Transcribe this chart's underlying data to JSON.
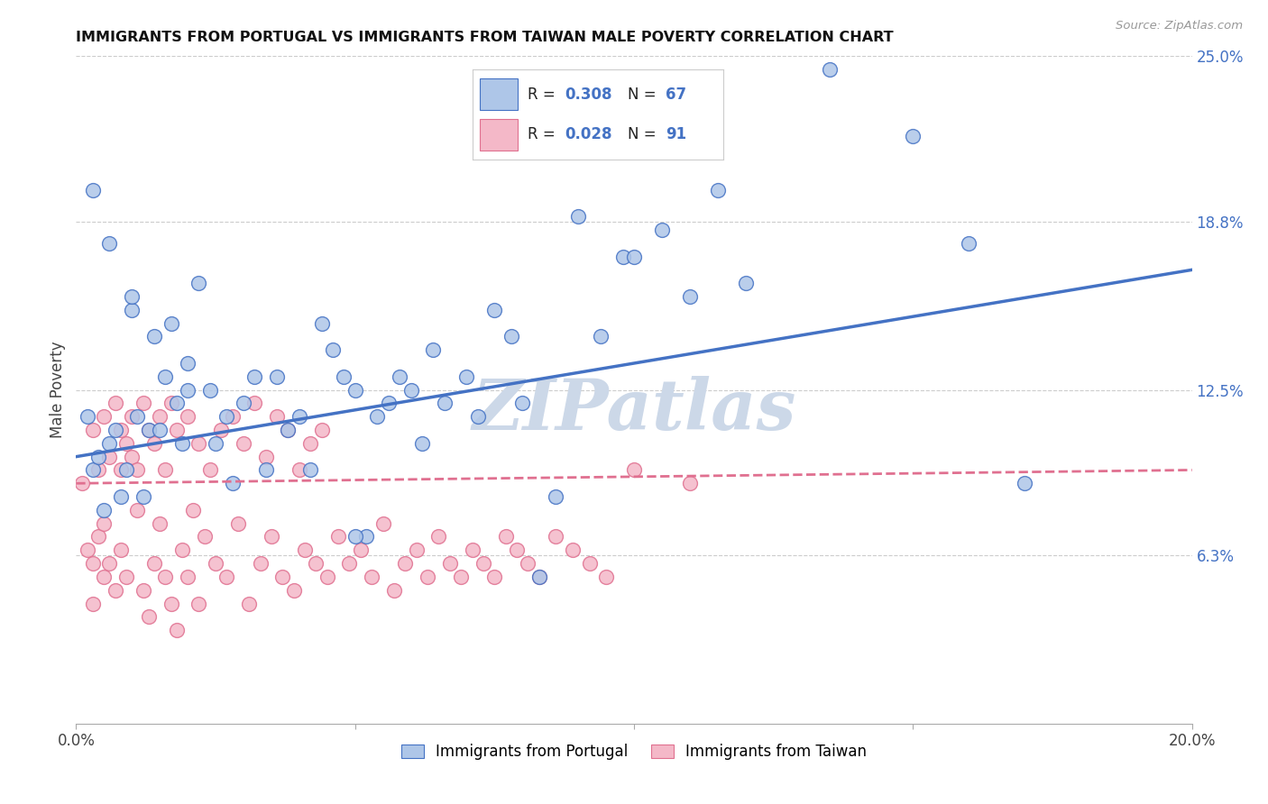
{
  "title": "IMMIGRANTS FROM PORTUGAL VS IMMIGRANTS FROM TAIWAN MALE POVERTY CORRELATION CHART",
  "source": "Source: ZipAtlas.com",
  "ylabel": "Male Poverty",
  "xlim": [
    0.0,
    0.2
  ],
  "ylim": [
    0.0,
    0.25
  ],
  "ytick_right_labels": [
    "25.0%",
    "18.8%",
    "12.5%",
    "6.3%"
  ],
  "ytick_right_values": [
    0.25,
    0.188,
    0.125,
    0.063
  ],
  "legend_R_portugal": "0.308",
  "legend_N_portugal": "67",
  "legend_R_taiwan": "0.028",
  "legend_N_taiwan": "91",
  "color_portugal": "#aec6e8",
  "color_taiwan": "#f4b8c8",
  "color_portugal_line": "#4472c4",
  "color_taiwan_line": "#e07090",
  "watermark": "ZIPatlas",
  "watermark_color": "#ccd8e8",
  "portugal_x": [
    0.002,
    0.003,
    0.004,
    0.005,
    0.006,
    0.007,
    0.008,
    0.009,
    0.01,
    0.011,
    0.012,
    0.013,
    0.014,
    0.015,
    0.016,
    0.017,
    0.018,
    0.019,
    0.02,
    0.022,
    0.024,
    0.025,
    0.027,
    0.028,
    0.03,
    0.032,
    0.034,
    0.036,
    0.038,
    0.04,
    0.042,
    0.044,
    0.046,
    0.048,
    0.05,
    0.052,
    0.054,
    0.056,
    0.058,
    0.06,
    0.062,
    0.064,
    0.066,
    0.07,
    0.072,
    0.075,
    0.078,
    0.08,
    0.083,
    0.086,
    0.09,
    0.094,
    0.098,
    0.1,
    0.105,
    0.11,
    0.115,
    0.12,
    0.135,
    0.15,
    0.16,
    0.17,
    0.003,
    0.006,
    0.01,
    0.02,
    0.05
  ],
  "portugal_y": [
    0.115,
    0.095,
    0.1,
    0.08,
    0.105,
    0.11,
    0.085,
    0.095,
    0.155,
    0.115,
    0.085,
    0.11,
    0.145,
    0.11,
    0.13,
    0.15,
    0.12,
    0.105,
    0.125,
    0.165,
    0.125,
    0.105,
    0.115,
    0.09,
    0.12,
    0.13,
    0.095,
    0.13,
    0.11,
    0.115,
    0.095,
    0.15,
    0.14,
    0.13,
    0.125,
    0.07,
    0.115,
    0.12,
    0.13,
    0.125,
    0.105,
    0.14,
    0.12,
    0.13,
    0.115,
    0.155,
    0.145,
    0.12,
    0.055,
    0.085,
    0.19,
    0.145,
    0.175,
    0.175,
    0.185,
    0.16,
    0.2,
    0.165,
    0.245,
    0.22,
    0.18,
    0.09,
    0.2,
    0.18,
    0.16,
    0.135,
    0.07
  ],
  "taiwan_x": [
    0.001,
    0.002,
    0.003,
    0.003,
    0.004,
    0.005,
    0.005,
    0.006,
    0.007,
    0.008,
    0.008,
    0.009,
    0.01,
    0.011,
    0.012,
    0.013,
    0.014,
    0.015,
    0.016,
    0.017,
    0.018,
    0.019,
    0.02,
    0.021,
    0.022,
    0.023,
    0.025,
    0.027,
    0.029,
    0.031,
    0.033,
    0.035,
    0.037,
    0.039,
    0.041,
    0.043,
    0.045,
    0.047,
    0.049,
    0.051,
    0.053,
    0.055,
    0.057,
    0.059,
    0.061,
    0.063,
    0.065,
    0.067,
    0.069,
    0.071,
    0.073,
    0.075,
    0.077,
    0.079,
    0.081,
    0.083,
    0.086,
    0.089,
    0.092,
    0.095,
    0.003,
    0.004,
    0.005,
    0.006,
    0.007,
    0.008,
    0.009,
    0.01,
    0.011,
    0.012,
    0.013,
    0.014,
    0.015,
    0.016,
    0.017,
    0.018,
    0.02,
    0.022,
    0.024,
    0.026,
    0.028,
    0.03,
    0.032,
    0.034,
    0.036,
    0.038,
    0.04,
    0.042,
    0.044,
    0.1,
    0.11
  ],
  "taiwan_y": [
    0.09,
    0.065,
    0.045,
    0.06,
    0.07,
    0.055,
    0.075,
    0.06,
    0.05,
    0.065,
    0.095,
    0.055,
    0.1,
    0.08,
    0.05,
    0.04,
    0.06,
    0.075,
    0.055,
    0.045,
    0.035,
    0.065,
    0.055,
    0.08,
    0.045,
    0.07,
    0.06,
    0.055,
    0.075,
    0.045,
    0.06,
    0.07,
    0.055,
    0.05,
    0.065,
    0.06,
    0.055,
    0.07,
    0.06,
    0.065,
    0.055,
    0.075,
    0.05,
    0.06,
    0.065,
    0.055,
    0.07,
    0.06,
    0.055,
    0.065,
    0.06,
    0.055,
    0.07,
    0.065,
    0.06,
    0.055,
    0.07,
    0.065,
    0.06,
    0.055,
    0.11,
    0.095,
    0.115,
    0.1,
    0.12,
    0.11,
    0.105,
    0.115,
    0.095,
    0.12,
    0.11,
    0.105,
    0.115,
    0.095,
    0.12,
    0.11,
    0.115,
    0.105,
    0.095,
    0.11,
    0.115,
    0.105,
    0.12,
    0.1,
    0.115,
    0.11,
    0.095,
    0.105,
    0.11,
    0.095,
    0.09
  ]
}
